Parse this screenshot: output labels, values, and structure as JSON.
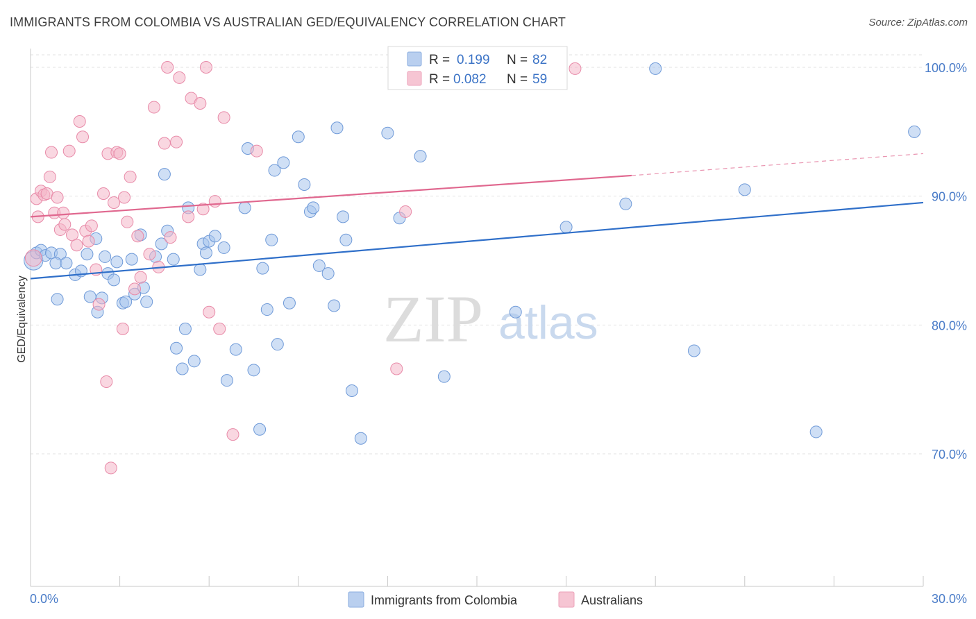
{
  "title": "IMMIGRANTS FROM COLOMBIA VS AUSTRALIAN GED/EQUIVALENCY CORRELATION CHART",
  "source": "Source: ZipAtlas.com",
  "watermark": {
    "zip": "ZIP",
    "atlas": "atlas"
  },
  "legend": {
    "r_label": "R =",
    "n_label": "N =",
    "rows": [
      {
        "r": "0.199",
        "n": "82",
        "color": "#a8c4ec"
      },
      {
        "r": "0.082",
        "n": "59",
        "color": "#f4b7c9"
      }
    ]
  },
  "bottom_legend": [
    "Immigrants from Colombia",
    "Australians"
  ],
  "chart_data": {
    "type": "scatter",
    "title": "IMMIGRANTS FROM COLOMBIA VS AUSTRALIAN GED/EQUIVALENCY CORRELATION CHART",
    "xlabel": "",
    "ylabel": "GED/Equivalency",
    "x_tick_labels": [
      "0.0%",
      "30.0%"
    ],
    "y_tick_labels": [
      "100.0%",
      "90.0%",
      "80.0%",
      "70.0%"
    ],
    "y_ticks": [
      100,
      90,
      80,
      70
    ],
    "xlim": [
      0,
      30
    ],
    "ylim": [
      60,
      104
    ],
    "grid": true,
    "legend_position": "top-center",
    "series": [
      {
        "name": "Immigrants from Colombia",
        "color": "#a8c4ec",
        "stroke": "#6f9ad8",
        "trend": {
          "x": [
            0,
            30
          ],
          "y": [
            83.6,
            89.5
          ],
          "color": "#2f6fc9"
        },
        "points": [
          [
            0.1,
            85.0,
            1.6
          ],
          [
            0.2,
            85.6,
            1
          ],
          [
            0.35,
            85.8,
            1
          ],
          [
            0.5,
            85.4,
            1
          ],
          [
            0.7,
            85.6,
            1
          ],
          [
            1.0,
            85.5,
            1
          ],
          [
            0.85,
            84.8,
            1
          ],
          [
            1.2,
            84.8,
            1
          ],
          [
            0.9,
            82.0,
            1
          ],
          [
            1.5,
            83.9,
            1
          ],
          [
            1.7,
            84.2,
            1
          ],
          [
            1.9,
            85.5,
            1
          ],
          [
            2.0,
            82.2,
            1
          ],
          [
            2.2,
            86.7,
            1
          ],
          [
            2.25,
            81.0,
            1
          ],
          [
            2.4,
            82.1,
            1
          ],
          [
            2.5,
            85.3,
            1
          ],
          [
            2.6,
            84.0,
            1
          ],
          [
            2.8,
            83.5,
            1
          ],
          [
            2.9,
            84.9,
            1
          ],
          [
            3.1,
            81.7,
            1
          ],
          [
            3.2,
            81.8,
            1
          ],
          [
            3.4,
            85.1,
            1
          ],
          [
            3.5,
            82.4,
            1
          ],
          [
            3.7,
            87.0,
            1
          ],
          [
            3.8,
            82.9,
            1
          ],
          [
            3.9,
            81.8,
            1
          ],
          [
            4.2,
            85.3,
            1
          ],
          [
            4.4,
            86.3,
            1
          ],
          [
            4.5,
            91.7,
            1
          ],
          [
            4.6,
            87.3,
            1
          ],
          [
            4.8,
            85.1,
            1
          ],
          [
            4.9,
            78.2,
            1
          ],
          [
            5.1,
            76.6,
            1
          ],
          [
            5.2,
            79.7,
            1
          ],
          [
            5.3,
            89.1,
            1
          ],
          [
            5.5,
            77.2,
            1
          ],
          [
            5.7,
            84.3,
            1
          ],
          [
            5.8,
            86.3,
            1
          ],
          [
            5.9,
            85.6,
            1
          ],
          [
            6.0,
            86.5,
            1
          ],
          [
            6.2,
            86.9,
            1
          ],
          [
            6.5,
            86.0,
            1
          ],
          [
            6.6,
            75.7,
            1
          ],
          [
            6.9,
            78.1,
            1
          ],
          [
            7.2,
            89.1,
            1
          ],
          [
            7.3,
            93.7,
            1
          ],
          [
            7.5,
            76.5,
            1
          ],
          [
            7.7,
            71.9,
            1
          ],
          [
            7.8,
            84.4,
            1
          ],
          [
            7.95,
            81.2,
            1
          ],
          [
            8.1,
            86.6,
            1
          ],
          [
            8.2,
            92.0,
            1
          ],
          [
            8.3,
            78.5,
            1
          ],
          [
            8.5,
            92.6,
            1
          ],
          [
            8.7,
            81.7,
            1
          ],
          [
            9.0,
            94.6,
            1
          ],
          [
            9.2,
            90.9,
            1
          ],
          [
            9.4,
            88.8,
            1
          ],
          [
            9.5,
            89.1,
            1
          ],
          [
            9.7,
            84.6,
            1
          ],
          [
            10.0,
            84.0,
            1
          ],
          [
            10.2,
            81.5,
            1
          ],
          [
            10.3,
            95.3,
            1
          ],
          [
            10.5,
            88.4,
            1
          ],
          [
            10.6,
            86.6,
            1
          ],
          [
            10.8,
            74.9,
            1
          ],
          [
            11.1,
            71.2,
            1
          ],
          [
            12.0,
            94.9,
            1
          ],
          [
            12.4,
            88.3,
            1
          ],
          [
            13.1,
            93.1,
            1
          ],
          [
            13.9,
            76.0,
            1
          ],
          [
            14.0,
            100.0,
            1
          ],
          [
            14.5,
            99.9,
            1
          ],
          [
            16.3,
            81.0,
            1
          ],
          [
            18.0,
            87.6,
            1
          ],
          [
            20.0,
            89.4,
            1
          ],
          [
            21.0,
            99.9,
            1
          ],
          [
            22.3,
            78.0,
            1
          ],
          [
            24.0,
            90.5,
            1
          ],
          [
            26.4,
            71.7,
            1
          ],
          [
            29.7,
            95.0,
            1
          ]
        ]
      },
      {
        "name": "Australians",
        "color": "#f4b7c9",
        "stroke": "#e88aa8",
        "trend": {
          "x": [
            0,
            20.2
          ],
          "y": [
            88.4,
            91.6
          ],
          "dash_to": [
            30,
            93.3
          ],
          "color": "#e0688f"
        },
        "points": [
          [
            0.1,
            85.2,
            1.4
          ],
          [
            0.2,
            89.8,
            1
          ],
          [
            0.25,
            88.4,
            1
          ],
          [
            0.35,
            90.4,
            1
          ],
          [
            0.45,
            90.1,
            1
          ],
          [
            0.55,
            90.2,
            1
          ],
          [
            0.65,
            91.5,
            1
          ],
          [
            0.7,
            93.4,
            1
          ],
          [
            0.8,
            88.7,
            1
          ],
          [
            0.9,
            89.9,
            1
          ],
          [
            1.0,
            87.4,
            1
          ],
          [
            1.1,
            88.7,
            1
          ],
          [
            1.15,
            87.8,
            1
          ],
          [
            1.3,
            93.5,
            1
          ],
          [
            1.4,
            87.0,
            1
          ],
          [
            1.55,
            86.2,
            1
          ],
          [
            1.65,
            95.8,
            1
          ],
          [
            1.75,
            94.6,
            1
          ],
          [
            1.85,
            87.3,
            1
          ],
          [
            1.95,
            86.5,
            1
          ],
          [
            2.05,
            87.7,
            1
          ],
          [
            2.2,
            84.3,
            1
          ],
          [
            2.3,
            81.6,
            1
          ],
          [
            2.45,
            90.2,
            1
          ],
          [
            2.55,
            75.6,
            1
          ],
          [
            2.6,
            93.3,
            1
          ],
          [
            2.7,
            68.9,
            1
          ],
          [
            2.8,
            89.5,
            1
          ],
          [
            2.9,
            93.4,
            1
          ],
          [
            3.0,
            93.3,
            1
          ],
          [
            3.1,
            79.7,
            1
          ],
          [
            3.15,
            89.9,
            1
          ],
          [
            3.25,
            88.0,
            1
          ],
          [
            3.35,
            91.5,
            1
          ],
          [
            3.5,
            82.8,
            1
          ],
          [
            3.6,
            86.9,
            1
          ],
          [
            3.7,
            83.7,
            1
          ],
          [
            4.0,
            85.5,
            1
          ],
          [
            4.15,
            96.9,
            1
          ],
          [
            4.3,
            84.5,
            1
          ],
          [
            4.5,
            94.1,
            1
          ],
          [
            4.6,
            100.0,
            1
          ],
          [
            4.7,
            86.8,
            1
          ],
          [
            4.9,
            94.2,
            1
          ],
          [
            5.0,
            99.2,
            1
          ],
          [
            5.3,
            88.4,
            1
          ],
          [
            5.4,
            97.6,
            1
          ],
          [
            5.7,
            97.2,
            1
          ],
          [
            5.8,
            89.0,
            1
          ],
          [
            5.9,
            100.0,
            1
          ],
          [
            6.0,
            81.0,
            1
          ],
          [
            6.2,
            89.6,
            1
          ],
          [
            6.35,
            79.7,
            1
          ],
          [
            6.5,
            96.1,
            1
          ],
          [
            6.8,
            71.5,
            1
          ],
          [
            7.6,
            93.5,
            1
          ],
          [
            12.3,
            76.6,
            1
          ],
          [
            12.6,
            88.8,
            1
          ],
          [
            18.3,
            99.9,
            1
          ]
        ]
      }
    ]
  }
}
